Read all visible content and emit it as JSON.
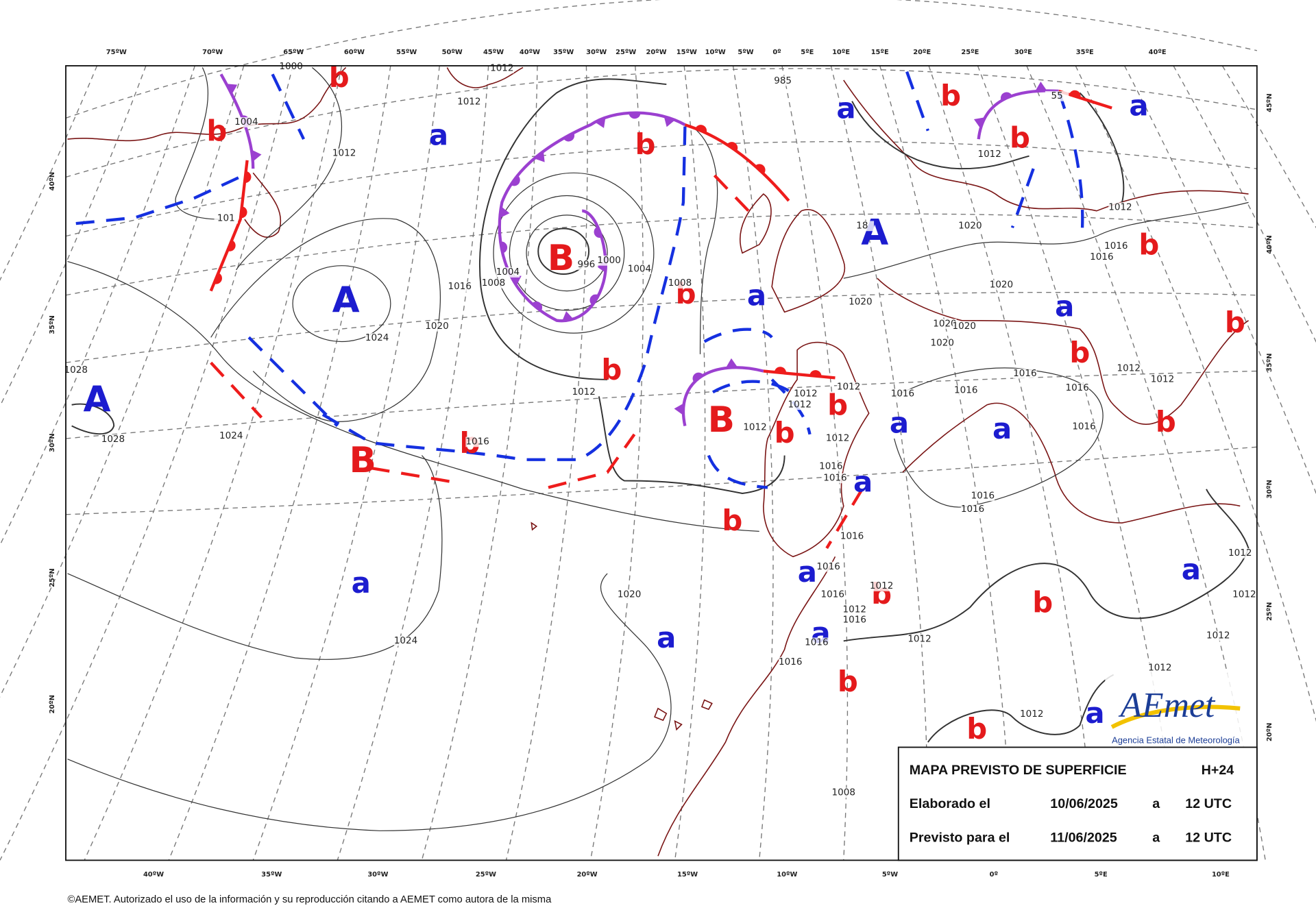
{
  "title": "MAPA PREVISTO DE SUPERFICIE",
  "forecast_step": "H+24",
  "issued": {
    "label": "Elaborado el",
    "date": "10/06/2025",
    "at": "a",
    "time": "12 UTC"
  },
  "valid": {
    "label": "Previsto para el",
    "date": "11/06/2025",
    "at": "a",
    "time": "12 UTC"
  },
  "logo": {
    "name": "AEmet",
    "subtitle": "Agencia Estatal de Meteorología"
  },
  "copyright": "©AEMET. Autorizado el uso de la información y su reproducción citando a AEMET como autora de la misma",
  "lon_labels_top": [
    "75ºW",
    "70ºW",
    "65ºW",
    "60ºW",
    "55ºW",
    "50ºW",
    "45ºW",
    "40ºW",
    "35ºW",
    "30ºW",
    "25ºW",
    "20ºW",
    "15ºW",
    "10ºW",
    "5ºW",
    "0º",
    "5ºE",
    "10ºE",
    "15ºE",
    "20ºE",
    "25ºE",
    "30ºE",
    "35ºE",
    "40ºE"
  ],
  "lon_labels_bottom": [
    "40ºW",
    "35ºW",
    "30ºW",
    "25ºW",
    "20ºW",
    "15ºW",
    "10ºW",
    "5ºW",
    "0º",
    "5ºE",
    "10ºE"
  ],
  "lat_labels_left": [
    "40ºN",
    "35ºN",
    "30ºN",
    "25ºN",
    "20ºN"
  ],
  "lat_labels_right": [
    "45ºN",
    "40ºN",
    "35ºN",
    "30ºN",
    "25ºN",
    "20ºN"
  ],
  "high_color": "#1c1ccf",
  "low_color": "#e41a1c",
  "high_centers": [
    "A",
    "A",
    "A"
  ],
  "low_centers": [
    "B",
    "B",
    "B"
  ],
  "relative_highs": [
    "a",
    "a",
    "a",
    "a",
    "a",
    "a",
    "a",
    "a",
    "a",
    "a",
    "a",
    "a",
    "a",
    "a"
  ],
  "relative_lows": [
    "b",
    "b",
    "b",
    "b",
    "b",
    "b",
    "b",
    "b",
    "b",
    "b",
    "b",
    "b",
    "b",
    "b",
    "b",
    "b",
    "b",
    "b",
    "b"
  ],
  "isobar_labels": [
    "1000",
    "1012",
    "1012",
    "1004",
    "1012",
    "101",
    "996",
    "1000",
    "1004",
    "1004",
    "1008",
    "1008",
    "1016",
    "1020",
    "1024",
    "1028",
    "1028",
    "1024",
    "1016",
    "1012",
    "1012",
    "1012",
    "1012",
    "1012",
    "1012",
    "1016",
    "1016",
    "1016",
    "1016",
    "1016",
    "1012",
    "1012",
    "1016",
    "1016",
    "1016",
    "1016",
    "1016",
    "1016",
    "1012",
    "1016",
    "1012",
    "1016",
    "1016",
    "1016",
    "1012",
    "1020",
    "1024",
    "1020",
    "1020",
    "1020",
    "1020",
    "1020",
    "1020",
    "1016",
    "1016",
    "1012",
    "1012",
    "1012",
    "1012",
    "1012",
    "1012",
    "1012",
    "1008",
    "985",
    "55",
    "18"
  ]
}
